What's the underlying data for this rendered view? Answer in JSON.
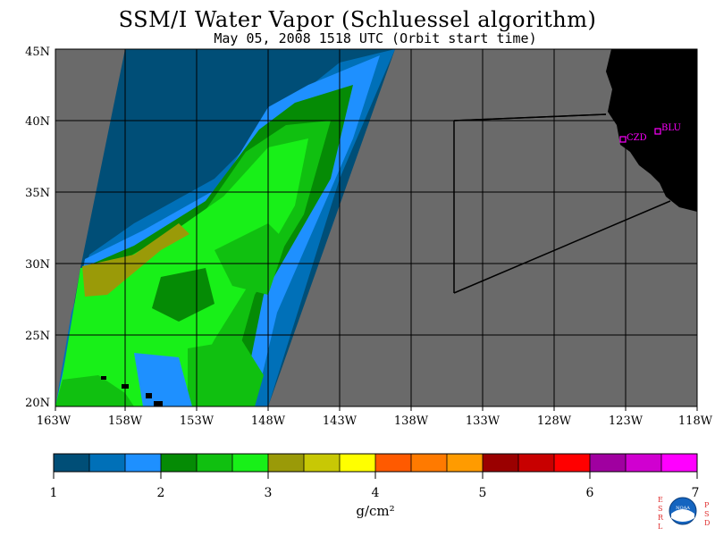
{
  "title": "SSM/I Water Vapor (Schluessel algorithm)",
  "subtitle": "May 05, 2008  1518 UTC  (Orbit start time)",
  "map": {
    "lat_labels": [
      "45N",
      "40N",
      "35N",
      "30N",
      "25N",
      "20N"
    ],
    "lon_labels": [
      "163W",
      "158W",
      "153W",
      "148W",
      "143W",
      "138W",
      "133W",
      "128W",
      "123W",
      "118W"
    ],
    "stations": [
      {
        "code": "CZD"
      },
      {
        "code": "BLU"
      }
    ],
    "colors": {
      "no_data": "#6a6a6a",
      "land": "#000000",
      "grid": "#000000",
      "station": "#ff00ff"
    }
  },
  "colorbar": {
    "colors": [
      "#004e77",
      "#0070b8",
      "#1e90ff",
      "#058b05",
      "#10c010",
      "#18f018",
      "#9a9a08",
      "#c8c805",
      "#ffff00",
      "#ff5a00",
      "#ff7a00",
      "#ff9b00",
      "#9a0000",
      "#c80000",
      "#ff0000",
      "#a000a0",
      "#d000d0",
      "#ff00ff"
    ],
    "tick_labels": [
      "1",
      "2",
      "3",
      "4",
      "5",
      "6",
      "7"
    ],
    "unit_label": "g/cm²"
  },
  "logo": {
    "left_letters": [
      "E",
      "S",
      "R",
      "L"
    ],
    "right_letters": [
      "P",
      "S",
      "D"
    ],
    "center_text": "NOAA"
  }
}
